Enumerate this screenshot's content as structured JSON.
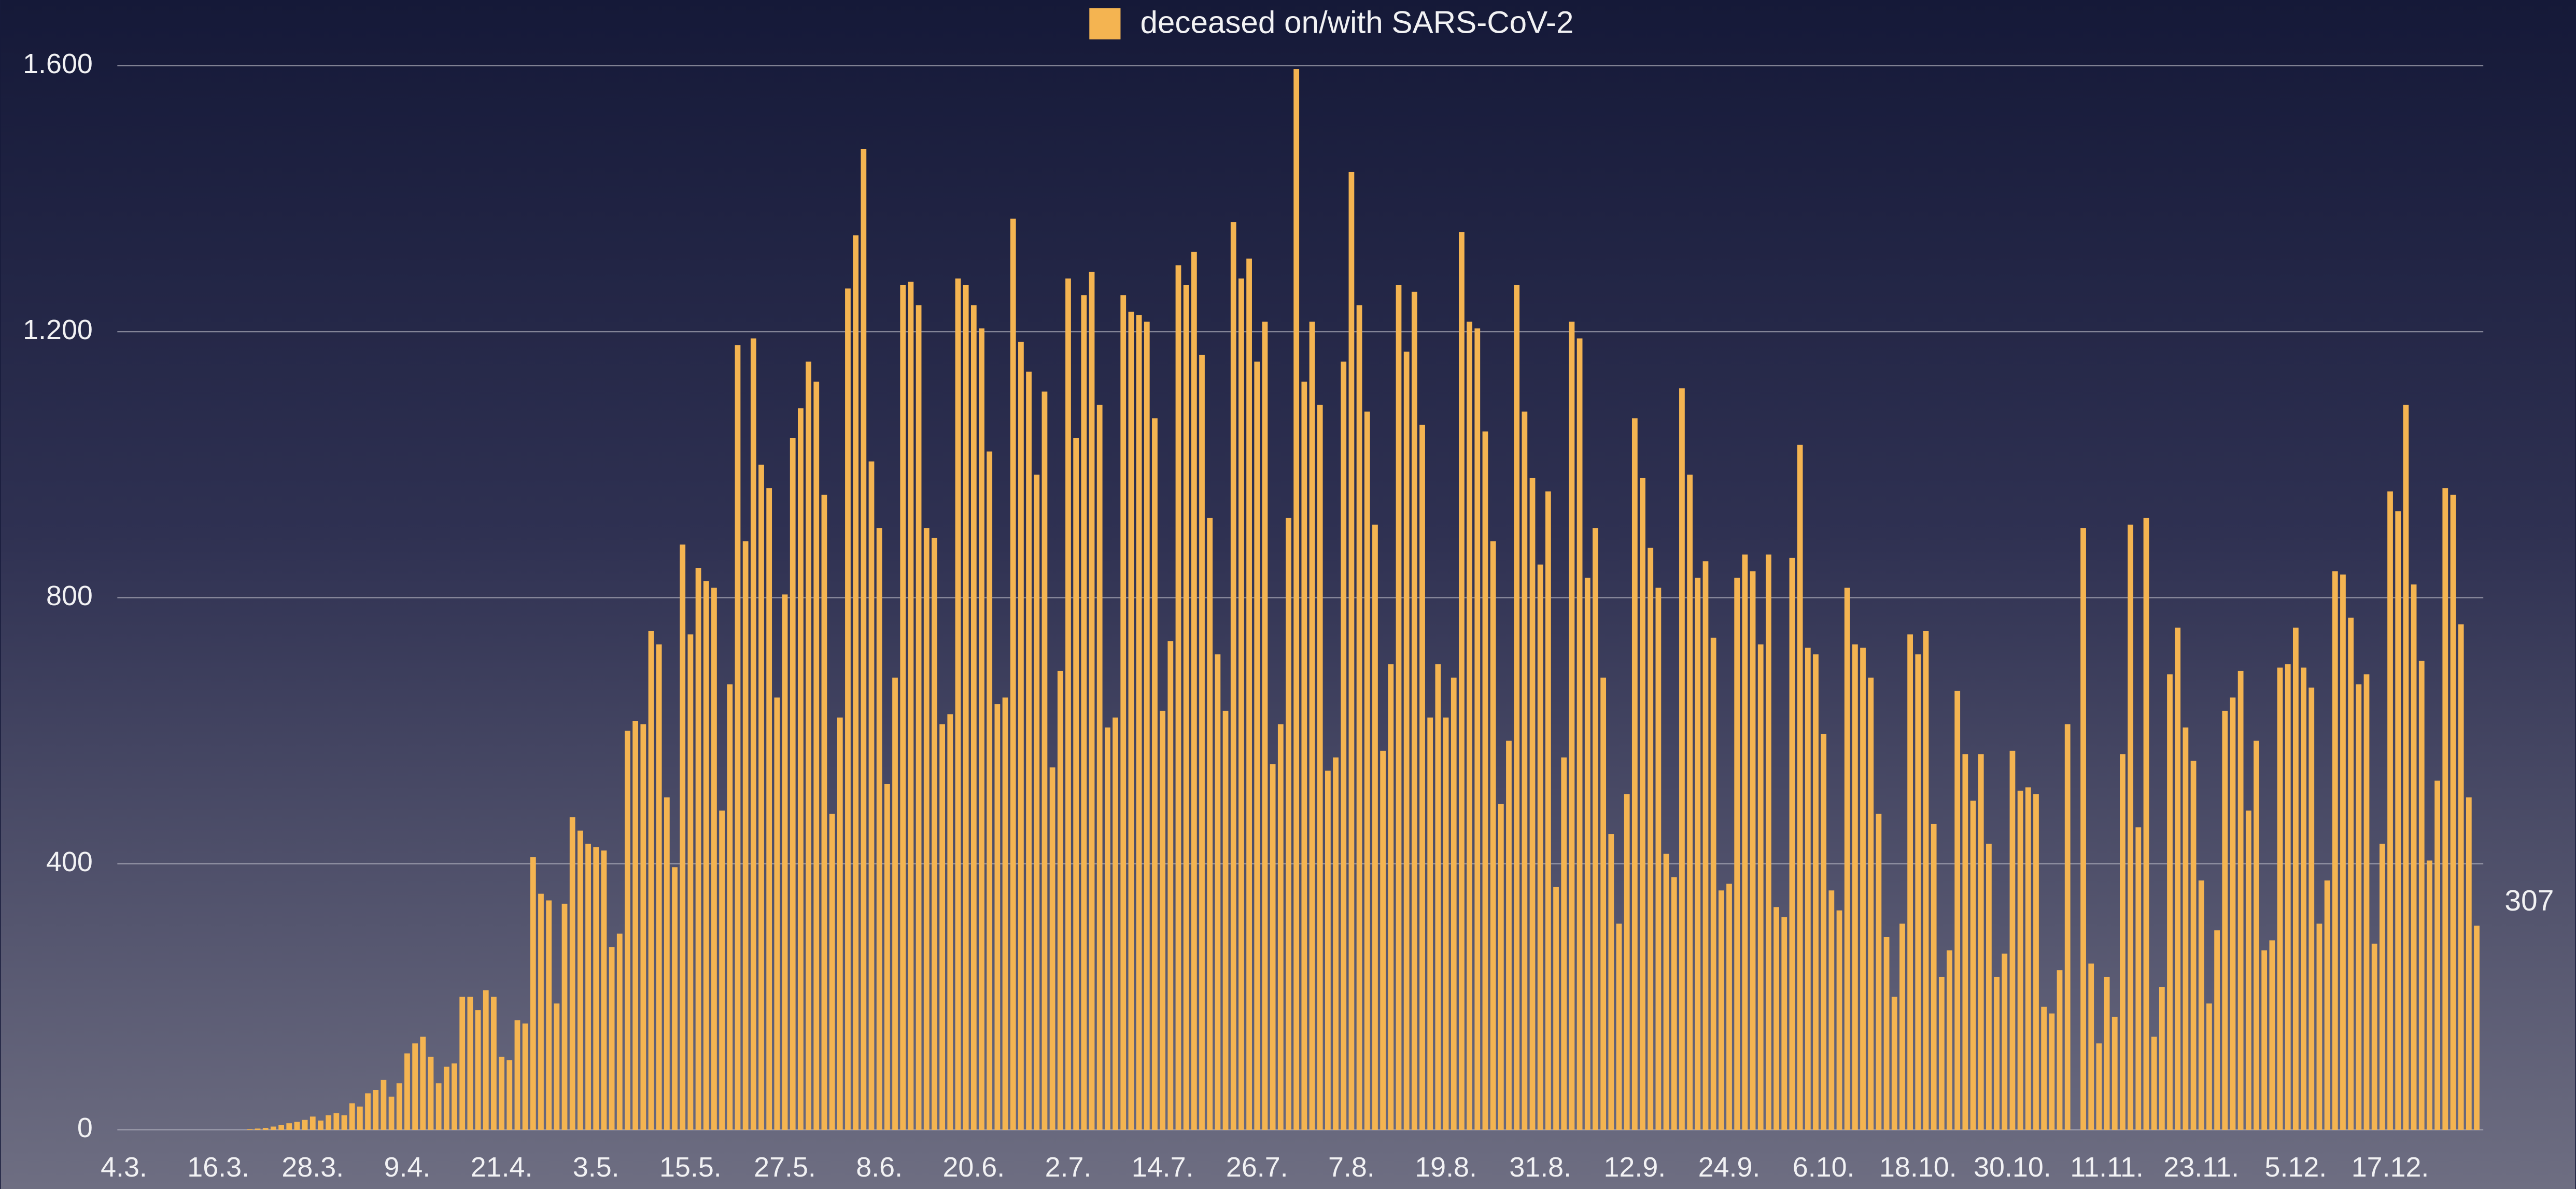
{
  "chart_data": {
    "type": "bar",
    "categories": [
      "4.3.",
      null,
      null,
      null,
      null,
      null,
      null,
      null,
      null,
      null,
      null,
      null,
      "16.3.",
      null,
      null,
      null,
      null,
      null,
      null,
      null,
      null,
      null,
      null,
      null,
      "28.3.",
      null,
      null,
      null,
      null,
      null,
      null,
      null,
      null,
      null,
      null,
      null,
      "9.4.",
      null,
      null,
      null,
      null,
      null,
      null,
      null,
      null,
      null,
      null,
      null,
      "21.4.",
      null,
      null,
      null,
      null,
      null,
      null,
      null,
      null,
      null,
      null,
      null,
      "3.5.",
      null,
      null,
      null,
      null,
      null,
      null,
      null,
      null,
      null,
      null,
      null,
      "15.5.",
      null,
      null,
      null,
      null,
      null,
      null,
      null,
      null,
      null,
      null,
      null,
      "27.5.",
      null,
      null,
      null,
      null,
      null,
      null,
      null,
      null,
      null,
      null,
      null,
      "8.6.",
      null,
      null,
      null,
      null,
      null,
      null,
      null,
      null,
      null,
      null,
      null,
      "20.6.",
      null,
      null,
      null,
      null,
      null,
      null,
      null,
      null,
      null,
      null,
      null,
      "2.7.",
      null,
      null,
      null,
      null,
      null,
      null,
      null,
      null,
      null,
      null,
      null,
      "14.7.",
      null,
      null,
      null,
      null,
      null,
      null,
      null,
      null,
      null,
      null,
      null,
      "26.7.",
      null,
      null,
      null,
      null,
      null,
      null,
      null,
      null,
      null,
      null,
      null,
      "7.8.",
      null,
      null,
      null,
      null,
      null,
      null,
      null,
      null,
      null,
      null,
      null,
      "19.8.",
      null,
      null,
      null,
      null,
      null,
      null,
      null,
      null,
      null,
      null,
      null,
      "31.8.",
      null,
      null,
      null,
      null,
      null,
      null,
      null,
      null,
      null,
      null,
      null,
      "12.9.",
      null,
      null,
      null,
      null,
      null,
      null,
      null,
      null,
      null,
      null,
      null,
      "24.9.",
      null,
      null,
      null,
      null,
      null,
      null,
      null,
      null,
      null,
      null,
      null,
      "6.10.",
      null,
      null,
      null,
      null,
      null,
      null,
      null,
      null,
      null,
      null,
      null,
      "18.10.",
      null,
      null,
      null,
      null,
      null,
      null,
      null,
      null,
      null,
      null,
      null,
      "30.10.",
      null,
      null,
      null,
      null,
      null,
      null,
      null,
      null,
      null,
      null,
      null,
      "11.11.",
      null,
      null,
      null,
      null,
      null,
      null,
      null,
      null,
      null,
      null,
      null,
      "23.11.",
      null,
      null,
      null,
      null,
      null,
      null,
      null,
      null,
      null,
      null,
      null,
      "5.12.",
      null,
      null,
      null,
      null,
      null,
      null,
      null,
      null,
      null,
      null,
      null,
      "17.12.",
      null,
      null,
      null,
      null,
      null,
      null,
      null,
      null,
      null,
      null,
      null
    ],
    "series": [
      {
        "name": "deceased on/with SARS-CoV-2",
        "color": "#f4b451",
        "values": [
          0,
          0,
          0,
          0,
          0,
          0,
          0,
          0,
          0,
          0,
          0,
          0,
          0,
          0,
          0,
          0,
          1,
          2,
          3,
          5,
          7,
          10,
          12,
          15,
          20,
          14,
          22,
          25,
          22,
          40,
          35,
          55,
          60,
          75,
          50,
          70,
          115,
          130,
          140,
          110,
          70,
          95,
          100,
          200,
          200,
          180,
          210,
          200,
          110,
          105,
          165,
          160,
          410,
          355,
          345,
          190,
          340,
          470,
          450,
          430,
          425,
          420,
          275,
          295,
          600,
          615,
          610,
          750,
          730,
          500,
          395,
          880,
          745,
          845,
          825,
          815,
          480,
          670,
          1180,
          885,
          1190,
          1000,
          965,
          650,
          805,
          1040,
          1085,
          1155,
          1125,
          955,
          475,
          620,
          1265,
          1345,
          1475,
          1005,
          905,
          520,
          680,
          1270,
          1275,
          1240,
          905,
          890,
          610,
          625,
          1280,
          1270,
          1240,
          1205,
          1020,
          640,
          650,
          1370,
          1185,
          1140,
          985,
          1110,
          545,
          690,
          1280,
          1040,
          1255,
          1290,
          1090,
          605,
          620,
          1255,
          1230,
          1225,
          1215,
          1070,
          630,
          735,
          1300,
          1270,
          1320,
          1165,
          920,
          715,
          630,
          1365,
          1280,
          1310,
          1155,
          1215,
          550,
          610,
          920,
          1595,
          1125,
          1215,
          1090,
          540,
          560,
          1155,
          1440,
          1240,
          1080,
          910,
          570,
          700,
          1270,
          1170,
          1260,
          1060,
          620,
          700,
          620,
          680,
          1350,
          1215,
          1205,
          1050,
          885,
          490,
          585,
          1270,
          1080,
          980,
          850,
          960,
          365,
          560,
          1215,
          1190,
          830,
          905,
          680,
          445,
          310,
          505,
          1070,
          980,
          875,
          815,
          415,
          380,
          1115,
          985,
          830,
          855,
          740,
          360,
          370,
          830,
          865,
          840,
          730,
          865,
          335,
          320,
          860,
          1030,
          725,
          715,
          595,
          360,
          330,
          815,
          730,
          725,
          680,
          475,
          290,
          200,
          310,
          745,
          715,
          750,
          460,
          230,
          270,
          660,
          565,
          495,
          565,
          430,
          230,
          265,
          570,
          510,
          515,
          505,
          185,
          175,
          240,
          610,
          0,
          905,
          250,
          130,
          230,
          170,
          565,
          910,
          455,
          920,
          140,
          215,
          685,
          755,
          605,
          555,
          375,
          190,
          300,
          630,
          650,
          690,
          480,
          585,
          270,
          285,
          695,
          700,
          755,
          695,
          665,
          310,
          375,
          840,
          835,
          770,
          670,
          685,
          280,
          430,
          960,
          930,
          1090,
          820,
          705,
          405,
          525,
          965,
          955,
          760,
          500,
          307
        ]
      }
    ],
    "ylim": [
      0,
      1600
    ],
    "yticks": [
      0,
      {
        "value": 400,
        "label": "400"
      },
      {
        "value": 800,
        "label": "800"
      },
      {
        "value": 1200,
        "label": "1.200"
      },
      {
        "value": 1600,
        "label": "1.600"
      }
    ],
    "grid": true,
    "legend": "top"
  }
}
